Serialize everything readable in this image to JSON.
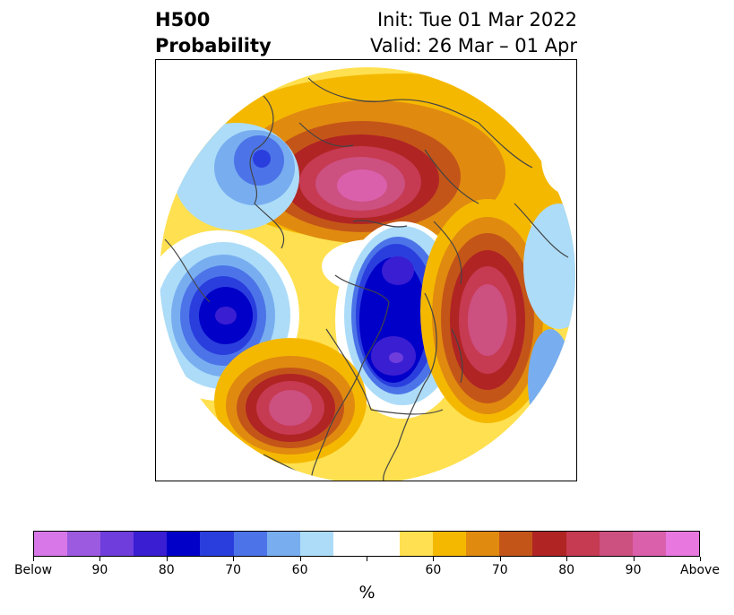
{
  "title": {
    "line1": "H500",
    "line2": "Probability"
  },
  "subtitle": {
    "line1": "Init: Tue 01 Mar 2022",
    "line2": "Valid: 26 Mar – 01 Apr"
  },
  "colorbar": {
    "colors": [
      "#d878e8",
      "#9c5ae0",
      "#6e3ddc",
      "#3a1ed2",
      "#0000c8",
      "#2a3ede",
      "#4c74e8",
      "#78aef0",
      "#acdcf8",
      "#ffffff",
      "#ffffff",
      "#ffe050",
      "#f5b800",
      "#e08a10",
      "#c45518",
      "#b02424",
      "#c63a52",
      "#cc5080",
      "#da60ac",
      "#e878e0"
    ],
    "tick_labels": [
      "Below",
      "90",
      "80",
      "70",
      "60",
      "",
      "60",
      "70",
      "80",
      "90",
      "Above"
    ],
    "unit": "%"
  },
  "map": {
    "projection": "polar stereographic (north pole)",
    "field": "500 hPa height anomaly probability"
  }
}
